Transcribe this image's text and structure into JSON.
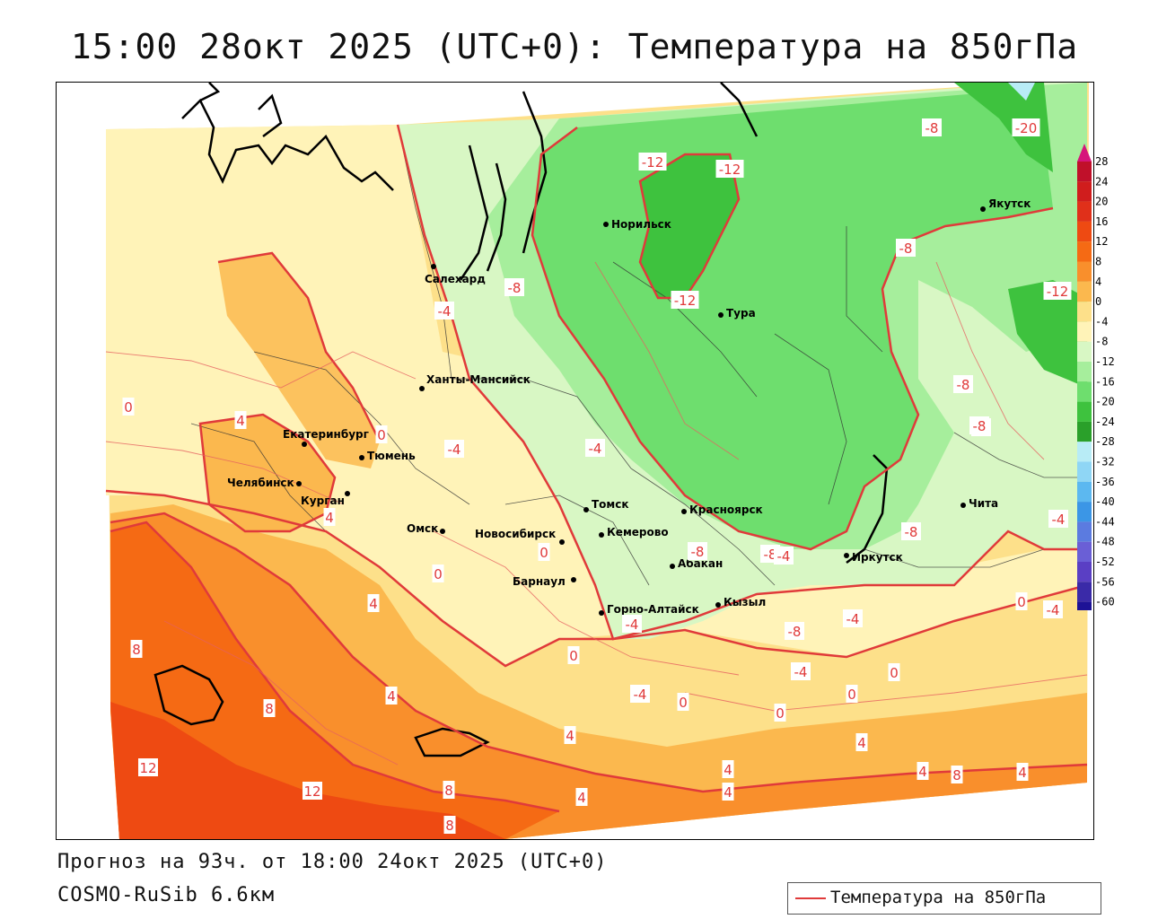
{
  "title": "15:00 28окт 2025 (UTC+0): Температура на 850гПа",
  "footer": {
    "forecast": "Прогноз на 93ч. от 18:00 24окт 2025 (UTC+0)",
    "model": "COSMO-RuSib 6.6км"
  },
  "legend": {
    "label": "Температура на 850гПа",
    "color": "#e03a3a"
  },
  "colorbar": {
    "ticks": [
      "28",
      "24",
      "20",
      "16",
      "12",
      "8",
      "4",
      "0",
      "-4",
      "-8",
      "-12",
      "-16",
      "-20",
      "-24",
      "-28",
      "-32",
      "-36",
      "-40",
      "-44",
      "-48",
      "-52",
      "-56",
      "-60"
    ],
    "colors": [
      "#c0102a",
      "#d01d1d",
      "#e0301a",
      "#ee4a12",
      "#f56a14",
      "#f98f2c",
      "#fbb84e",
      "#fde08a",
      "#fff3b8",
      "#d8f7c4",
      "#a6ee9c",
      "#6ede6e",
      "#3ec23e",
      "#2aa02a",
      "#b8ecf6",
      "#8fd6f5",
      "#5cb8f0",
      "#3b96e6",
      "#5b7be0",
      "#6a5fd6",
      "#5a3fc4",
      "#3a2aa8",
      "#1d1296"
    ]
  },
  "cities": [
    {
      "name": "Норильск"
    },
    {
      "name": "Якутск"
    },
    {
      "name": "Салехард"
    },
    {
      "name": "Тура"
    },
    {
      "name": "Ханты-Мансийск"
    },
    {
      "name": "Екатеринбург"
    },
    {
      "name": "Тюмень"
    },
    {
      "name": "Челябинск"
    },
    {
      "name": "Курган"
    },
    {
      "name": "Омск"
    },
    {
      "name": "Томск"
    },
    {
      "name": "Новосибирск"
    },
    {
      "name": "Кемерово"
    },
    {
      "name": "Красноярск"
    },
    {
      "name": "Абакан"
    },
    {
      "name": "Барнаул"
    },
    {
      "name": "Горно-Алтайск"
    },
    {
      "name": "Кызыл"
    },
    {
      "name": "Иркутск"
    },
    {
      "name": "Чита"
    }
  ],
  "isotherm_labels": [
    "-20",
    "-12",
    "-12",
    "-8",
    "-12",
    "-8",
    "-12",
    "-8",
    "-8",
    "-4",
    "-4",
    "-4",
    "-4",
    "-8",
    "-8",
    "-4",
    "-8",
    "-8",
    "-4",
    "-4",
    "-4",
    "-4",
    "-8",
    "-4",
    "-4",
    "0",
    "0",
    "0",
    "0",
    "0",
    "0",
    "0",
    "0",
    "0",
    "0",
    "4",
    "4",
    "4",
    "4",
    "4",
    "4",
    "4",
    "4",
    "4",
    "4",
    "4",
    "8",
    "8",
    "8",
    "8",
    "8",
    "12",
    "12"
  ]
}
